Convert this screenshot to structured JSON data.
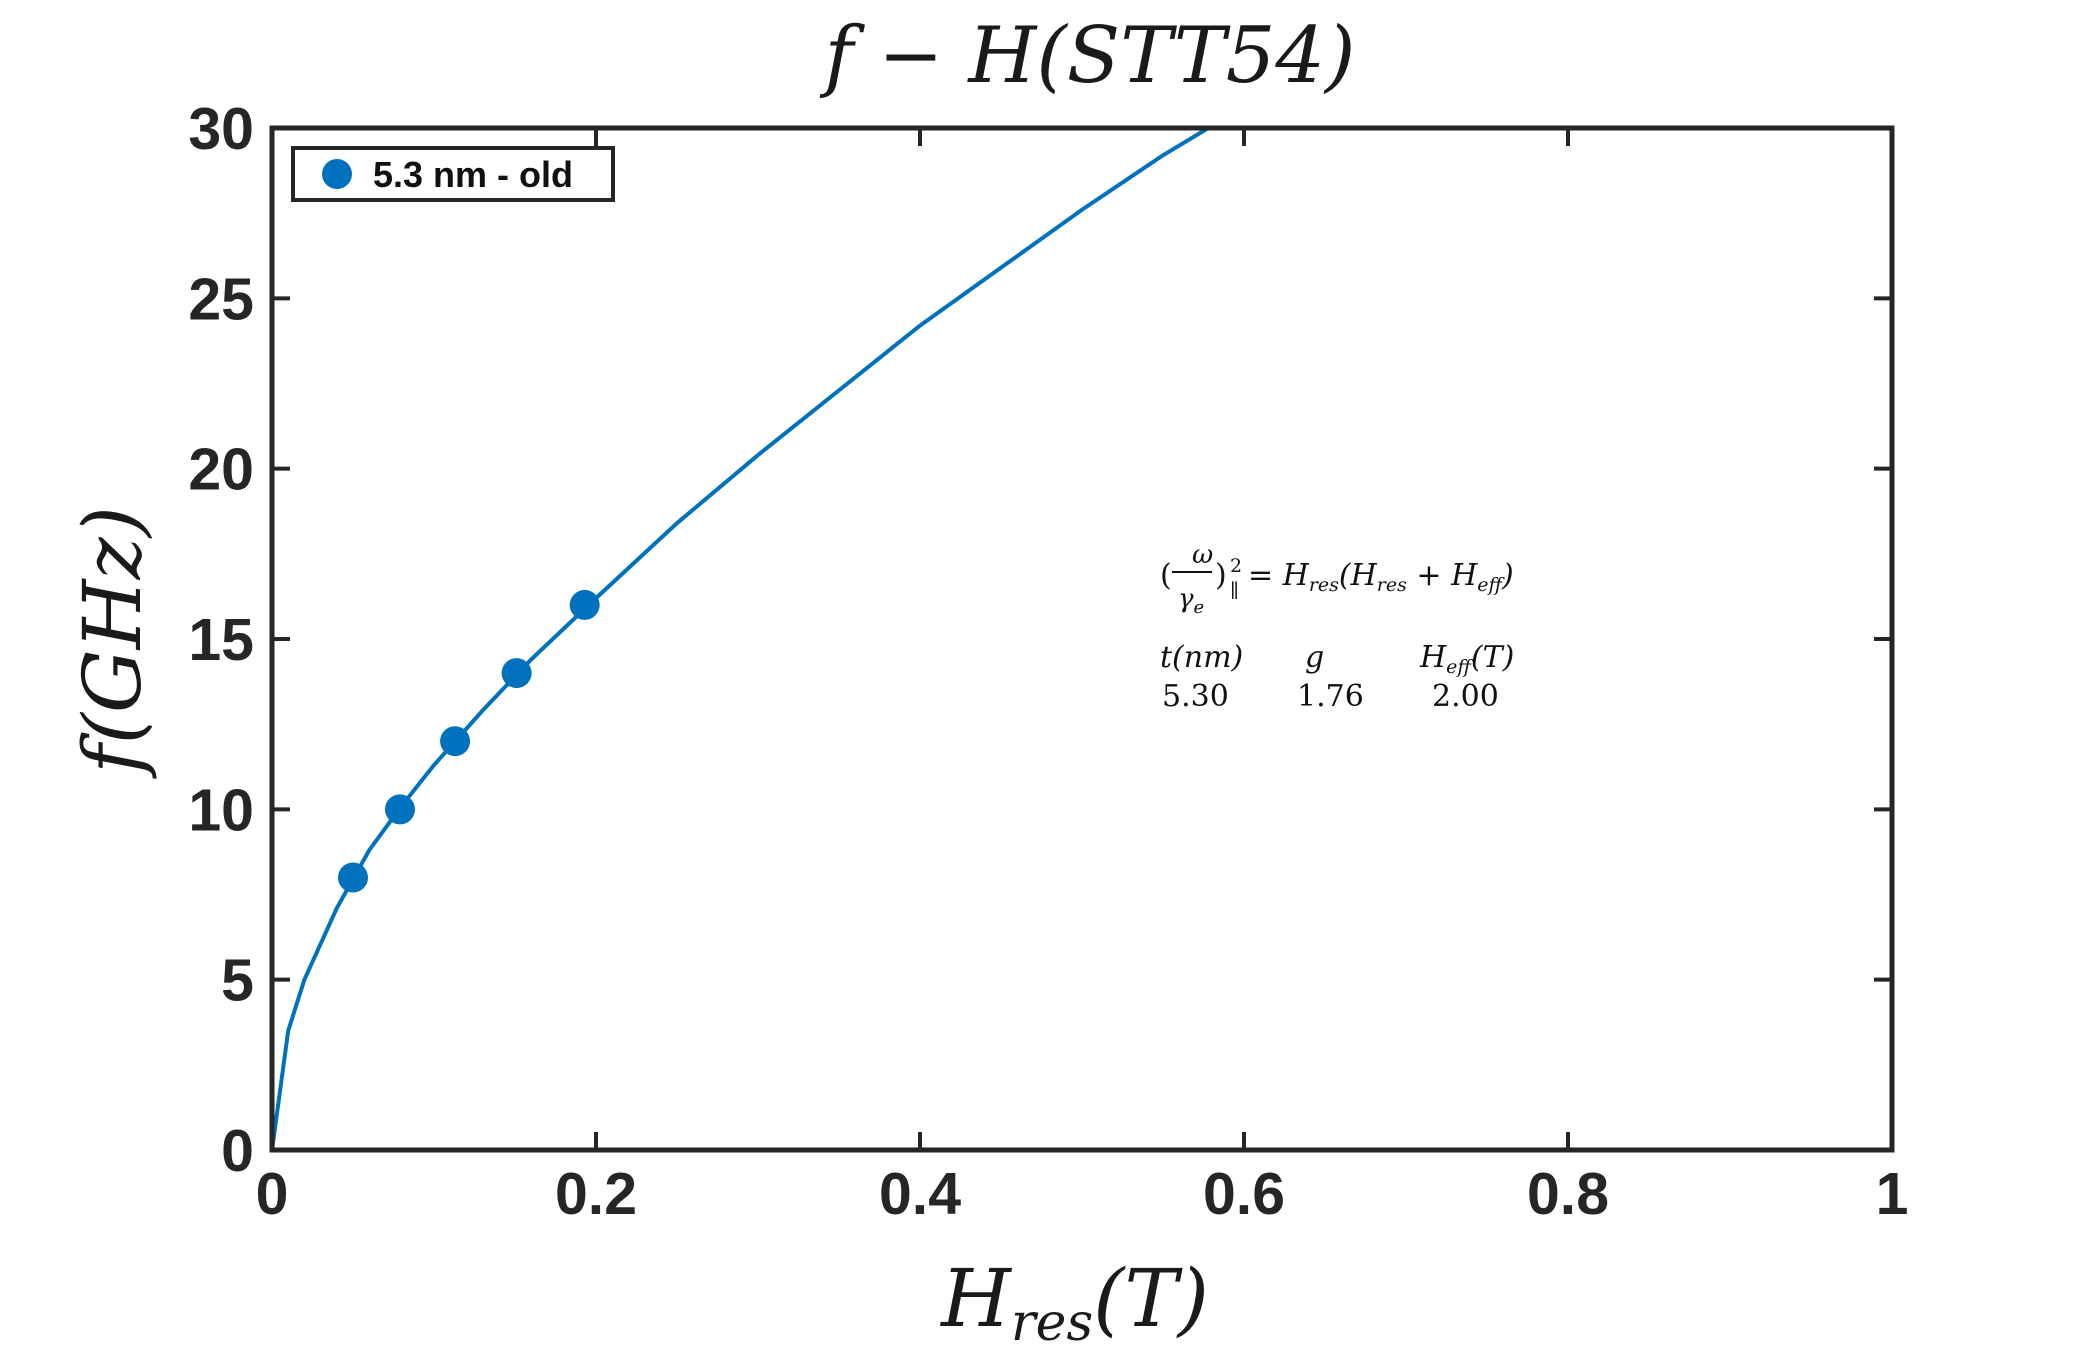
{
  "chart_data": {
    "type": "scatter",
    "title": "f − H(STT54)",
    "xlabel": "H_res(T)",
    "ylabel": "f(GHz)",
    "xlim": [
      0,
      1
    ],
    "ylim": [
      0,
      30
    ],
    "xticks": [
      0,
      0.2,
      0.4,
      0.6,
      0.8,
      1
    ],
    "yticks": [
      0,
      5,
      10,
      15,
      20,
      25,
      30
    ],
    "xtick_labels": [
      "0",
      "0.2",
      "0.4",
      "0.6",
      "0.8",
      "1"
    ],
    "ytick_labels": [
      "0",
      "5",
      "10",
      "15",
      "20",
      "25",
      "30"
    ],
    "grid": false,
    "legend_position": "top-left",
    "series": [
      {
        "name": "5.3 nm - old",
        "kind": "markers",
        "color": "#0072BD",
        "x": [
          0.05,
          0.079,
          0.113,
          0.151,
          0.193
        ],
        "y": [
          8,
          10,
          12,
          14,
          16
        ]
      },
      {
        "kind": "fit-line",
        "color": "#0072BD",
        "x": [
          0,
          0.01,
          0.02,
          0.04,
          0.06,
          0.08,
          0.1,
          0.13,
          0.16,
          0.2,
          0.25,
          0.3,
          0.35,
          0.4,
          0.45,
          0.5,
          0.55,
          0.578
        ],
        "y": [
          0,
          3.5,
          5.0,
          7.1,
          8.8,
          10.1,
          11.3,
          12.9,
          14.4,
          16.2,
          18.4,
          20.4,
          22.3,
          24.2,
          25.9,
          27.6,
          29.2,
          30
        ]
      }
    ],
    "annotations": {
      "formula_lhs": "(ω/γe)",
      "formula_sup": "2",
      "formula_sub": "∥",
      "formula_rhs": "= H_res(H_res + H_eff)",
      "table_headers": [
        "t(nm)",
        "g",
        "H_eff(T)"
      ],
      "table_values": [
        "5.30",
        "1.76",
        "2.00"
      ]
    }
  }
}
